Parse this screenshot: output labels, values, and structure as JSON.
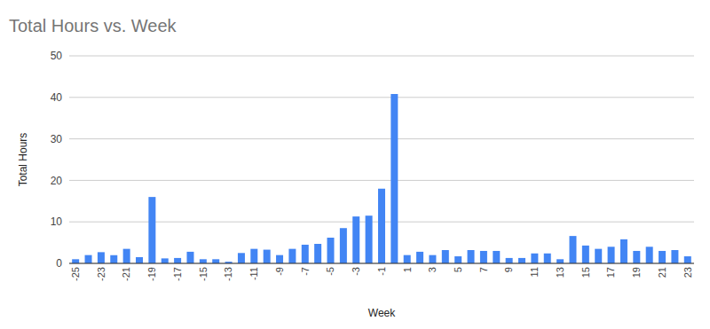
{
  "chart_data": {
    "type": "bar",
    "title": "Total Hours vs. Week",
    "x_label": "Week",
    "y_label": "Total Hours",
    "categories": [
      "-25",
      null,
      "-23",
      null,
      "-21",
      null,
      "-19",
      null,
      "-17",
      null,
      "-15",
      null,
      "-13",
      null,
      "-11",
      null,
      "-9",
      null,
      "-7",
      null,
      "-5",
      null,
      "-3",
      null,
      "-1",
      null,
      "1",
      null,
      "3",
      null,
      "5",
      null,
      "7",
      null,
      "9",
      null,
      "11",
      null,
      "13",
      null,
      "15",
      null,
      "17",
      null,
      "19",
      null,
      "21",
      null,
      "23"
    ],
    "values": [
      1.0,
      2.0,
      2.7,
      2.0,
      3.5,
      1.5,
      16,
      1.2,
      1.3,
      2.8,
      1.0,
      1.0,
      0.4,
      2.5,
      3.5,
      3.3,
      2.0,
      3.5,
      4.5,
      4.7,
      6.2,
      8.5,
      11.3,
      11.5,
      18,
      40.8,
      2.0,
      2.8,
      2.0,
      3.2,
      1.7,
      3.2,
      3.0,
      3.0,
      1.3,
      1.3,
      2.4,
      2.4,
      1.0,
      6.6,
      4.3,
      3.5,
      4.0,
      5.8,
      3.0,
      4.0,
      3.0,
      3.2,
      1.7
    ],
    "color": "#4285f4",
    "ylim": [
      0,
      50
    ],
    "yticks": [
      0,
      10,
      20,
      30,
      40,
      50
    ],
    "grid": true
  }
}
